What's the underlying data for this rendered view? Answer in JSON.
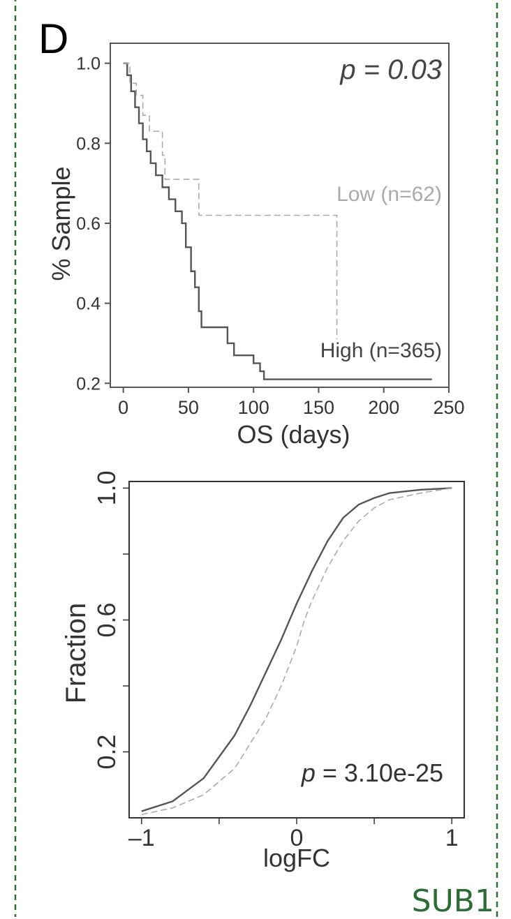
{
  "panel": {
    "letter": "D",
    "gene": "SUB1",
    "colors": {
      "border": "#2e6b36",
      "high_line": "#555555",
      "low_line": "#aaaaaa"
    }
  },
  "chart_data": [
    {
      "type": "line",
      "subtype": "kaplan-meier",
      "title": "",
      "xlabel": "OS (days)",
      "ylabel": "% Sample",
      "xlim": [
        -10,
        250
      ],
      "ylim": [
        0.19,
        1.05
      ],
      "xticks": [
        0,
        50,
        100,
        150,
        200,
        250
      ],
      "yticks": [
        0.2,
        0.4,
        0.6,
        0.8,
        1.0
      ],
      "xtick_labels": [
        "0",
        "50",
        "100",
        "150",
        "200",
        "250"
      ],
      "ytick_labels": [
        "0.2",
        "0.4",
        "0.6",
        "0.8",
        "1.0"
      ],
      "annotation": "p = 0.03",
      "grid": false,
      "series": [
        {
          "name": "High (n=365)",
          "style": "solid",
          "color": "#555555",
          "x": [
            0,
            3,
            6,
            9,
            12,
            15,
            18,
            21,
            25,
            30,
            35,
            40,
            45,
            48,
            52,
            55,
            58,
            60,
            65,
            70,
            75,
            80,
            85,
            90,
            100,
            105,
            108,
            110,
            237
          ],
          "y": [
            1.0,
            0.97,
            0.93,
            0.89,
            0.85,
            0.81,
            0.78,
            0.75,
            0.72,
            0.69,
            0.66,
            0.63,
            0.6,
            0.54,
            0.48,
            0.44,
            0.38,
            0.34,
            0.34,
            0.34,
            0.34,
            0.3,
            0.27,
            0.27,
            0.25,
            0.23,
            0.21,
            0.21,
            0.21
          ]
        },
        {
          "name": "Low (n=62)",
          "style": "dashed",
          "color": "#aaaaaa",
          "x": [
            0,
            5,
            10,
            15,
            20,
            30,
            32,
            58,
            60,
            163,
            164
          ],
          "y": [
            1.0,
            0.95,
            0.92,
            0.87,
            0.83,
            0.77,
            0.71,
            0.62,
            0.62,
            0.62,
            0.31
          ]
        }
      ]
    },
    {
      "type": "line",
      "subtype": "cumulative-distribution",
      "title": "",
      "xlabel": "logFC",
      "ylabel": "Fraction",
      "xlim": [
        -1.08,
        1.08
      ],
      "ylim": [
        0.0,
        1.02
      ],
      "xticks": [
        -1,
        0,
        1
      ],
      "xtick_labels": [
        "–1",
        "0",
        "1"
      ],
      "yticks": [
        0.2,
        0.6,
        1.0
      ],
      "ytick_labels": [
        "0.2",
        "0.6",
        "1.0"
      ],
      "yminor_ticks": [
        0.4,
        0.8
      ],
      "annotation": "p = 3.10e-25",
      "grid": false,
      "series": [
        {
          "name": "",
          "style": "solid",
          "color": "#555555",
          "x": [
            -1.0,
            -0.8,
            -0.6,
            -0.4,
            -0.3,
            -0.2,
            -0.1,
            0.0,
            0.1,
            0.2,
            0.3,
            0.4,
            0.5,
            0.6,
            0.8,
            1.0
          ],
          "y": [
            0.02,
            0.05,
            0.12,
            0.25,
            0.34,
            0.44,
            0.54,
            0.65,
            0.75,
            0.84,
            0.91,
            0.95,
            0.97,
            0.985,
            0.995,
            1.0
          ]
        },
        {
          "name": "",
          "style": "dashed",
          "color": "#aaaaaa",
          "x": [
            -1.0,
            -0.8,
            -0.6,
            -0.4,
            -0.2,
            -0.1,
            0.0,
            0.05,
            0.1,
            0.2,
            0.3,
            0.4,
            0.5,
            0.6,
            0.8,
            1.0
          ],
          "y": [
            0.01,
            0.03,
            0.07,
            0.15,
            0.3,
            0.4,
            0.52,
            0.6,
            0.66,
            0.76,
            0.84,
            0.9,
            0.94,
            0.965,
            0.985,
            1.0
          ]
        }
      ]
    }
  ]
}
